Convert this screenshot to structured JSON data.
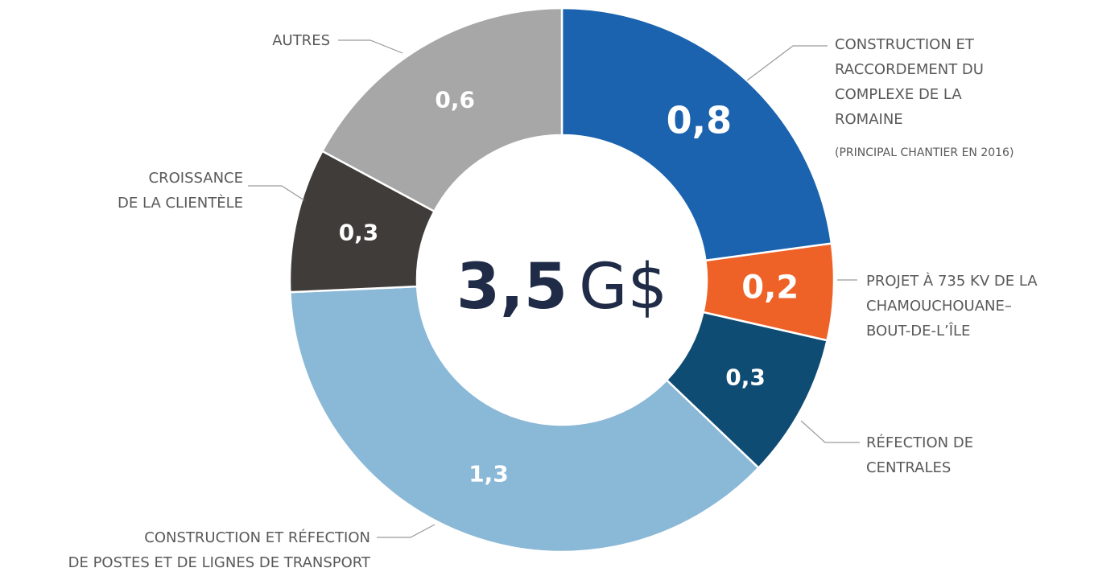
{
  "chart_data": {
    "type": "donut",
    "categories": [
      "CONSTRUCTION ET\nRACCORDEMENT DU\nCOMPLEXE DE LA\nROMAINE",
      "PROJET À 735 KV DE LA\nCHAMOUCHOUANE–\nBOUT-DE-L’ÎLE",
      "RÉFECTION DE\nCENTRALES",
      "CONSTRUCTION ET RÉFECTION\nDE POSTES ET DE LIGNES DE TRANSPORT",
      "CROISSANCE\nDE LA CLIENTÈLE",
      "AUTRES"
    ],
    "values": [
      0.8,
      0.2,
      0.3,
      1.3,
      0.3,
      0.6
    ],
    "value_labels": [
      "0,8",
      "0,2",
      "0,3",
      "1,3",
      "0,3",
      "0,6"
    ],
    "colors": [
      "#1b63ae",
      "#ef6227",
      "#0f4c73",
      "#8ab8d7",
      "#403c39",
      "#a7a7a7"
    ],
    "annotations": [
      "(PRINCIPAL CHANTIER EN 2016)"
    ],
    "total": 3.5,
    "total_label": "3,5",
    "total_unit": "G$"
  }
}
